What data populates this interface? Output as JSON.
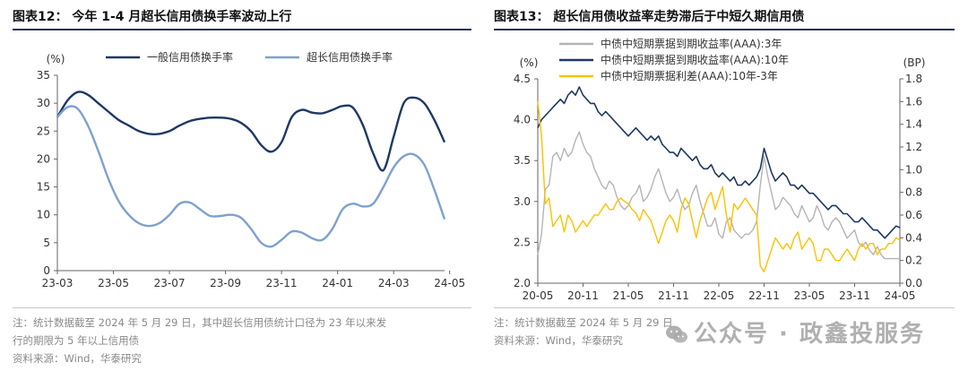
{
  "left": {
    "figure_title": "图表12： 今年 1-4 月超长信用债换手率波动上行",
    "note_lines": [
      "注：统计数据截至 2024 年 5 月 29 日，其中超长信用债统计口径为 23 年以来发",
      "行的期限为 5 年以上信用债",
      "资料来源：Wind，华泰研究"
    ]
  },
  "right": {
    "figure_title": "图表13： 超长信用债收益率走势滞后于中短久期信用债",
    "note_lines": [
      "注：统计数据截至 2024 年 5 月 29 日",
      "资料来源：Wind，华泰研究"
    ]
  },
  "watermark": "公众号 · 政鑫投服务",
  "colors": {
    "navy": "#1f3864",
    "lightblue": "#7ea1cf",
    "gray": "#b4b4b4",
    "yellow": "#ffc000"
  },
  "chart_data": [
    {
      "type": "line",
      "title": "今年 1-4 月超长信用债换手率波动上行",
      "ylabel": "(%)",
      "ylim": [
        0,
        35
      ],
      "yticks": [
        0,
        5,
        10,
        15,
        20,
        25,
        30,
        35
      ],
      "xlim": [
        0,
        38
      ],
      "x_tick_labels": [
        "23-03",
        "23-05",
        "23-07",
        "23-09",
        "23-11",
        "24-01",
        "24-03",
        "24-05"
      ],
      "x_tick_positions": [
        0,
        5.5,
        11,
        16.5,
        22,
        27.5,
        33,
        38.5
      ],
      "legend_position": "top",
      "grid": false,
      "series": [
        {
          "name": "一般信用债换手率",
          "color": "navy",
          "width": 2.4,
          "x": [
            0,
            1,
            2,
            3,
            4,
            5,
            6,
            7,
            8,
            9,
            10,
            11,
            12,
            13,
            14,
            15,
            16,
            17,
            18,
            19,
            20,
            21,
            22,
            23,
            24,
            25,
            26,
            27,
            28,
            29,
            30,
            31,
            32,
            33,
            34,
            35,
            36,
            37,
            38
          ],
          "y": [
            27.5,
            30.5,
            32,
            31.5,
            30,
            28.5,
            27,
            26,
            25,
            24.5,
            24.5,
            25,
            26,
            26.8,
            27.2,
            27.4,
            27.4,
            27.2,
            26.5,
            25,
            22.5,
            21.3,
            23,
            27.5,
            28.8,
            28.3,
            28.2,
            28.8,
            29.5,
            29.2,
            26,
            21,
            18,
            24,
            30,
            31,
            30,
            27,
            23
          ]
        },
        {
          "name": "超长信用债换手率",
          "color": "lightblue",
          "width": 2.4,
          "x": [
            0,
            1,
            2,
            3,
            4,
            5,
            6,
            7,
            8,
            9,
            10,
            11,
            12,
            13,
            14,
            15,
            16,
            17,
            18,
            19,
            20,
            21,
            22,
            23,
            24,
            25,
            26,
            27,
            28,
            29,
            30,
            31,
            32,
            33,
            34,
            35,
            36,
            37,
            38
          ],
          "y": [
            27.5,
            29.3,
            29,
            26,
            21.5,
            16.5,
            12.5,
            10,
            8.5,
            8,
            8.5,
            10,
            12,
            12.2,
            11,
            9.8,
            9.8,
            10,
            9.5,
            7.5,
            5,
            4.3,
            5.5,
            7,
            6.8,
            5.8,
            5.5,
            7.5,
            11,
            12,
            11.5,
            12,
            15,
            18.5,
            20.5,
            20.8,
            19,
            14.5,
            9.2
          ]
        }
      ]
    },
    {
      "type": "line",
      "title": "超长信用债收益率走势滞后于中短久期信用债",
      "ylabel": "(%)",
      "y2label": "(BP)",
      "ylim": [
        2.0,
        4.5
      ],
      "yticks": [
        2.0,
        2.5,
        3.0,
        3.5,
        4.0,
        4.5
      ],
      "y2lim": [
        0,
        1.8
      ],
      "y2ticks": [
        0,
        0.2,
        0.4,
        0.6,
        0.8,
        1.0,
        1.2,
        1.4,
        1.6,
        1.8
      ],
      "xlim": [
        0,
        48
      ],
      "x_tick_labels": [
        "20-05",
        "20-11",
        "21-05",
        "21-11",
        "22-05",
        "22-11",
        "23-05",
        "23-11",
        "24-05"
      ],
      "x_tick_positions": [
        0,
        6,
        12,
        18,
        24,
        30,
        36,
        42,
        48
      ],
      "legend_position": "top",
      "grid": false,
      "series": [
        {
          "name": "中债中短期票据到期收益率(AAA):3年",
          "color": "gray",
          "axis": "left",
          "width": 1.4,
          "x": [
            0,
            0.5,
            1,
            1.5,
            2,
            2.5,
            3,
            3.5,
            4,
            4.5,
            5,
            5.5,
            6,
            6.5,
            7,
            7.5,
            8,
            8.5,
            9,
            9.5,
            10,
            10.5,
            11,
            11.5,
            12,
            12.5,
            13,
            13.5,
            14,
            14.5,
            15,
            15.5,
            16,
            16.5,
            17,
            17.5,
            18,
            18.5,
            19,
            19.5,
            20,
            20.5,
            21,
            21.5,
            22,
            22.5,
            23,
            23.5,
            24,
            24.5,
            25,
            25.5,
            26,
            26.5,
            27,
            27.5,
            28,
            28.5,
            29,
            29.5,
            30,
            30.5,
            31,
            31.5,
            32,
            32.5,
            33,
            33.5,
            34,
            34.5,
            35,
            35.5,
            36,
            36.5,
            37,
            37.5,
            38,
            38.5,
            39,
            39.5,
            40,
            40.5,
            41,
            41.5,
            42,
            42.5,
            43,
            43.5,
            44,
            44.5,
            45,
            45.5,
            46,
            46.5,
            47,
            47.5,
            48
          ],
          "y": [
            2.35,
            2.6,
            3.15,
            3.2,
            3.55,
            3.6,
            3.5,
            3.65,
            3.55,
            3.6,
            3.75,
            3.85,
            3.7,
            3.6,
            3.55,
            3.4,
            3.3,
            3.2,
            3.15,
            3.25,
            3.2,
            3.05,
            2.95,
            2.9,
            2.95,
            3.05,
            3.1,
            3.2,
            3.0,
            3.05,
            3.15,
            3.3,
            3.4,
            3.25,
            3.1,
            3.0,
            3.05,
            3.15,
            3.0,
            2.9,
            2.95,
            3.1,
            3.2,
            3.0,
            2.85,
            2.7,
            2.7,
            2.8,
            2.6,
            2.55,
            2.75,
            2.8,
            2.65,
            2.6,
            2.55,
            2.6,
            2.6,
            2.65,
            2.75,
            3.2,
            3.55,
            3.3,
            3.1,
            2.9,
            2.95,
            3.05,
            3.0,
            2.95,
            2.85,
            2.8,
            2.95,
            2.85,
            2.75,
            2.8,
            2.95,
            2.85,
            2.7,
            2.65,
            2.75,
            2.8,
            2.75,
            2.65,
            2.55,
            2.6,
            2.65,
            2.5,
            2.45,
            2.5,
            2.4,
            2.35,
            2.45,
            2.35,
            2.3,
            2.3,
            2.3,
            2.3,
            2.3
          ]
        },
        {
          "name": "中债中短期票据到期收益率(AAA):10年",
          "color": "navy",
          "axis": "left",
          "width": 1.6,
          "x": [
            0,
            0.5,
            1,
            1.5,
            2,
            2.5,
            3,
            3.5,
            4,
            4.5,
            5,
            5.5,
            6,
            6.5,
            7,
            7.5,
            8,
            8.5,
            9,
            9.5,
            10,
            10.5,
            11,
            11.5,
            12,
            12.5,
            13,
            13.5,
            14,
            14.5,
            15,
            15.5,
            16,
            16.5,
            17,
            17.5,
            18,
            18.5,
            19,
            19.5,
            20,
            20.5,
            21,
            21.5,
            22,
            22.5,
            23,
            23.5,
            24,
            24.5,
            25,
            25.5,
            26,
            26.5,
            27,
            27.5,
            28,
            28.5,
            29,
            29.5,
            30,
            30.5,
            31,
            31.5,
            32,
            32.5,
            33,
            33.5,
            34,
            34.5,
            35,
            35.5,
            36,
            36.5,
            37,
            37.5,
            38,
            38.5,
            39,
            39.5,
            40,
            40.5,
            41,
            41.5,
            42,
            42.5,
            43,
            43.5,
            44,
            44.5,
            45,
            45.5,
            46,
            46.5,
            47,
            47.5,
            48
          ],
          "y": [
            3.9,
            4.0,
            4.05,
            4.1,
            4.15,
            4.2,
            4.25,
            4.2,
            4.3,
            4.35,
            4.3,
            4.4,
            4.3,
            4.25,
            4.2,
            4.2,
            4.1,
            4.05,
            4.1,
            4.05,
            4.0,
            3.95,
            3.9,
            3.85,
            3.8,
            3.85,
            3.9,
            3.85,
            3.8,
            3.75,
            3.8,
            3.75,
            3.8,
            3.7,
            3.65,
            3.6,
            3.6,
            3.55,
            3.65,
            3.6,
            3.55,
            3.5,
            3.55,
            3.45,
            3.4,
            3.4,
            3.45,
            3.35,
            3.3,
            3.35,
            3.3,
            3.25,
            3.3,
            3.2,
            3.2,
            3.25,
            3.2,
            3.25,
            3.3,
            3.4,
            3.65,
            3.5,
            3.35,
            3.25,
            3.3,
            3.35,
            3.3,
            3.2,
            3.2,
            3.15,
            3.2,
            3.15,
            3.1,
            3.1,
            3.05,
            3.0,
            2.95,
            2.9,
            2.95,
            2.95,
            2.9,
            2.85,
            2.85,
            2.8,
            2.75,
            2.75,
            2.8,
            2.75,
            2.7,
            2.65,
            2.65,
            2.6,
            2.55,
            2.6,
            2.65,
            2.7,
            2.68
          ]
        },
        {
          "name": "中债中短期票据利差(AAA):10年-3年",
          "color": "yellow",
          "axis": "right",
          "width": 1.4,
          "x": [
            0,
            0.5,
            1,
            1.5,
            2,
            2.5,
            3,
            3.5,
            4,
            4.5,
            5,
            5.5,
            6,
            6.5,
            7,
            7.5,
            8,
            8.5,
            9,
            9.5,
            10,
            10.5,
            11,
            11.5,
            12,
            12.5,
            13,
            13.5,
            14,
            14.5,
            15,
            15.5,
            16,
            16.5,
            17,
            17.5,
            18,
            18.5,
            19,
            19.5,
            20,
            20.5,
            21,
            21.5,
            22,
            22.5,
            23,
            23.5,
            24,
            24.5,
            25,
            25.5,
            26,
            26.5,
            27,
            27.5,
            28,
            28.5,
            29,
            29.5,
            30,
            30.5,
            31,
            31.5,
            32,
            32.5,
            33,
            33.5,
            34,
            34.5,
            35,
            35.5,
            36,
            36.5,
            37,
            37.5,
            38,
            38.5,
            39,
            39.5,
            40,
            40.5,
            41,
            41.5,
            42,
            42.5,
            43,
            43.5,
            44,
            44.5,
            45,
            45.5,
            46,
            46.5,
            47,
            47.5,
            48
          ],
          "y": [
            1.6,
            1.3,
            0.7,
            0.75,
            0.5,
            0.55,
            0.6,
            0.45,
            0.6,
            0.55,
            0.45,
            0.5,
            0.55,
            0.5,
            0.55,
            0.6,
            0.6,
            0.65,
            0.7,
            0.65,
            0.65,
            0.72,
            0.75,
            0.72,
            0.7,
            0.65,
            0.62,
            0.55,
            0.65,
            0.6,
            0.55,
            0.45,
            0.35,
            0.45,
            0.55,
            0.6,
            0.55,
            0.45,
            0.65,
            0.75,
            0.7,
            0.55,
            0.4,
            0.55,
            0.65,
            0.75,
            0.8,
            0.65,
            0.75,
            0.85,
            0.6,
            0.45,
            0.7,
            0.65,
            0.7,
            0.75,
            0.7,
            0.65,
            0.6,
            0.15,
            0.1,
            0.2,
            0.3,
            0.4,
            0.35,
            0.3,
            0.35,
            0.3,
            0.4,
            0.45,
            0.3,
            0.35,
            0.4,
            0.35,
            0.2,
            0.2,
            0.3,
            0.3,
            0.25,
            0.2,
            0.2,
            0.25,
            0.3,
            0.25,
            0.2,
            0.3,
            0.35,
            0.3,
            0.35,
            0.35,
            0.25,
            0.3,
            0.3,
            0.35,
            0.35,
            0.4,
            0.38
          ]
        }
      ]
    }
  ]
}
